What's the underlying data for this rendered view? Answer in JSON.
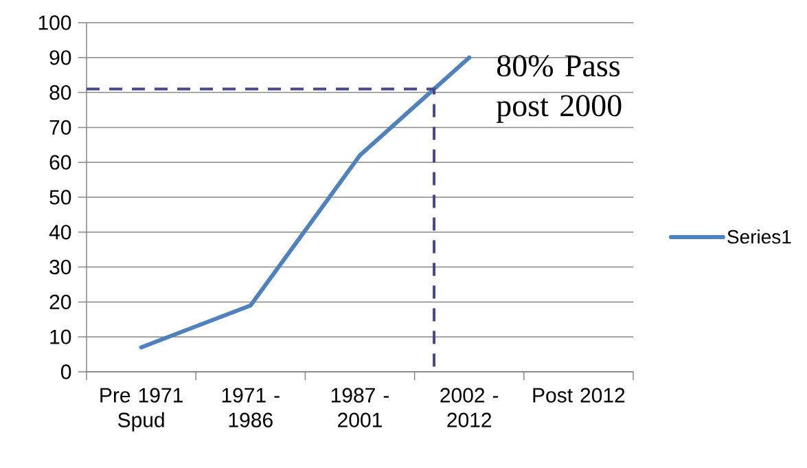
{
  "chart_data": {
    "type": "line",
    "categories": [
      "Pre 1971 Spud",
      "1971 - 1986",
      "1987 - 2001",
      "2002 - 2012",
      "Post 2012"
    ],
    "series": [
      {
        "name": "Series1",
        "color": "#4f81bd",
        "values": [
          7,
          19,
          62,
          90,
          null
        ]
      }
    ],
    "ylim": [
      0,
      100
    ],
    "yticks": [
      0,
      10,
      20,
      30,
      40,
      50,
      60,
      70,
      80,
      90,
      100
    ],
    "grid": "y",
    "legend": "right",
    "ref_lines": [
      {
        "axis": "y",
        "value": 81,
        "label": "80% Pass post 2000",
        "line_style": "dashed",
        "color": "#47478a"
      }
    ]
  }
}
